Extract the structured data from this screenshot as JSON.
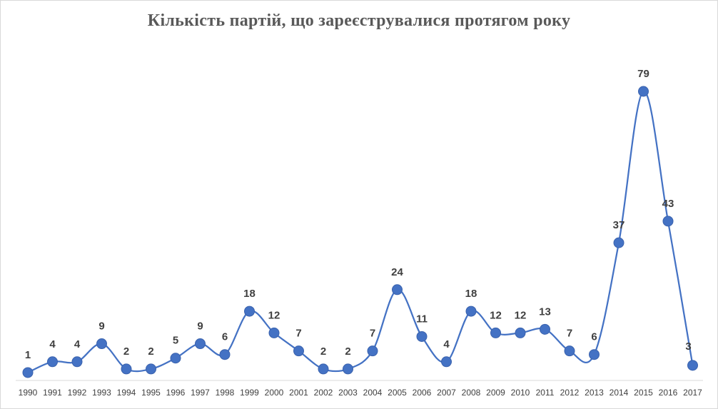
{
  "chart_data": {
    "type": "line",
    "title": "Кількість партій, що зареєструвалися протягом року",
    "xlabel": "",
    "ylabel": "",
    "categories": [
      "1990",
      "1991",
      "1992",
      "1993",
      "1994",
      "1995",
      "1996",
      "1997",
      "1998",
      "1999",
      "2000",
      "2001",
      "2002",
      "2003",
      "2004",
      "2005",
      "2006",
      "2007",
      "2008",
      "2009",
      "2010",
      "2011",
      "2012",
      "2013",
      "2014",
      "2015",
      "2016",
      "2017"
    ],
    "series": [
      {
        "values": [
          1,
          4,
          4,
          9,
          2,
          2,
          5,
          9,
          6,
          18,
          12,
          7,
          2,
          2,
          7,
          24,
          11,
          4,
          18,
          12,
          12,
          13,
          7,
          6,
          37,
          79,
          43,
          3
        ],
        "color": "#4472c4"
      }
    ],
    "ylim": [
      0,
      79
    ],
    "grid": false,
    "legend": "none",
    "smooth": true,
    "data_labels": true
  }
}
